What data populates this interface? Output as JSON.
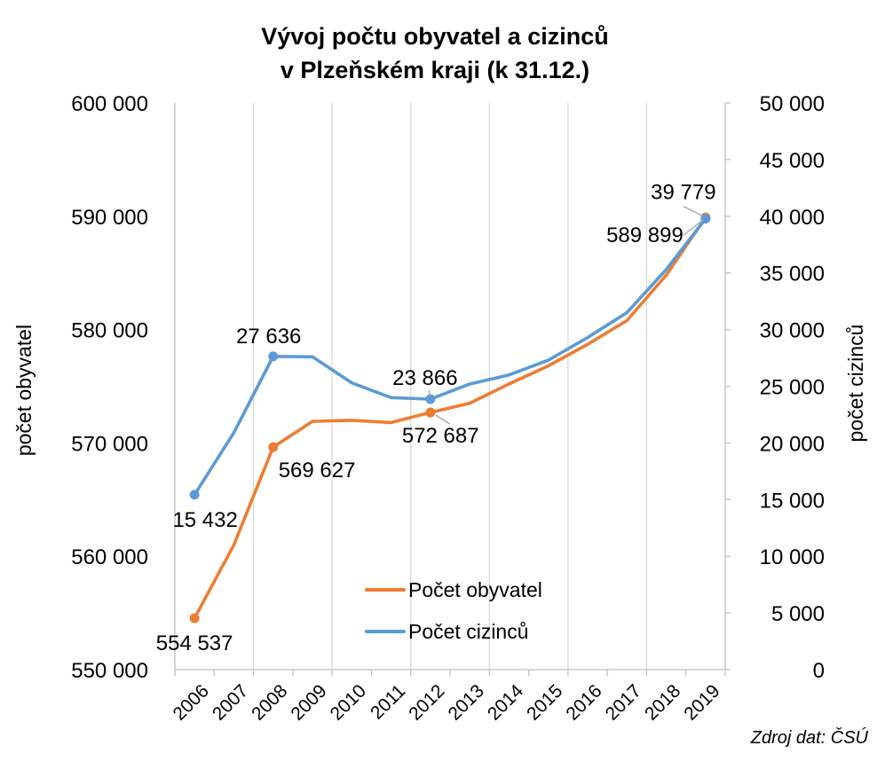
{
  "chart_data": {
    "type": "line",
    "title_lines": [
      "Vývoj počtu obyvatel a cizinců",
      "v Plzeňském kraji (k 31.12.)"
    ],
    "x": [
      "2006",
      "2007",
      "2008",
      "2009",
      "2010",
      "2011",
      "2012",
      "2013",
      "2014",
      "2015",
      "2016",
      "2017",
      "2018",
      "2019"
    ],
    "y_left": {
      "label": "počet obyvatel",
      "range": [
        550000,
        600000
      ],
      "ticks": [
        "550 000",
        "560 000",
        "570 000",
        "580 000",
        "590 000",
        "600 000"
      ]
    },
    "y_right": {
      "label": "počet cizinců",
      "range": [
        0,
        50000
      ],
      "ticks": [
        "0",
        "5 000",
        "10 000",
        "15 000",
        "20 000",
        "25 000",
        "30 000",
        "35 000",
        "40 000",
        "45 000",
        "50 000"
      ]
    },
    "series": [
      {
        "name": "Počet obyvatel",
        "axis": "left",
        "color": "#ED7D31",
        "values": [
          554537,
          561000,
          569627,
          571900,
          572000,
          571800,
          572687,
          573500,
          575200,
          576800,
          578700,
          580800,
          584800,
          589899
        ]
      },
      {
        "name": "Počet cizinců",
        "axis": "right",
        "color": "#5B9BD5",
        "values": [
          15432,
          20900,
          27636,
          27600,
          25300,
          24000,
          23866,
          25200,
          26000,
          27300,
          29300,
          31500,
          35300,
          39779
        ]
      }
    ],
    "data_labels": [
      {
        "series": 0,
        "index": 0,
        "text": "554 537"
      },
      {
        "series": 0,
        "index": 2,
        "text": "569 627"
      },
      {
        "series": 0,
        "index": 6,
        "text": "572 687"
      },
      {
        "series": 0,
        "index": 13,
        "text": "589 899"
      },
      {
        "series": 1,
        "index": 0,
        "text": "15 432"
      },
      {
        "series": 1,
        "index": 2,
        "text": "27 636"
      },
      {
        "series": 1,
        "index": 6,
        "text": "23 866"
      },
      {
        "series": 1,
        "index": 13,
        "text": "39 779"
      }
    ],
    "grid": "vertical",
    "legend_position": "bottom-center"
  },
  "source_note": "Zdroj dat: ČSÚ"
}
